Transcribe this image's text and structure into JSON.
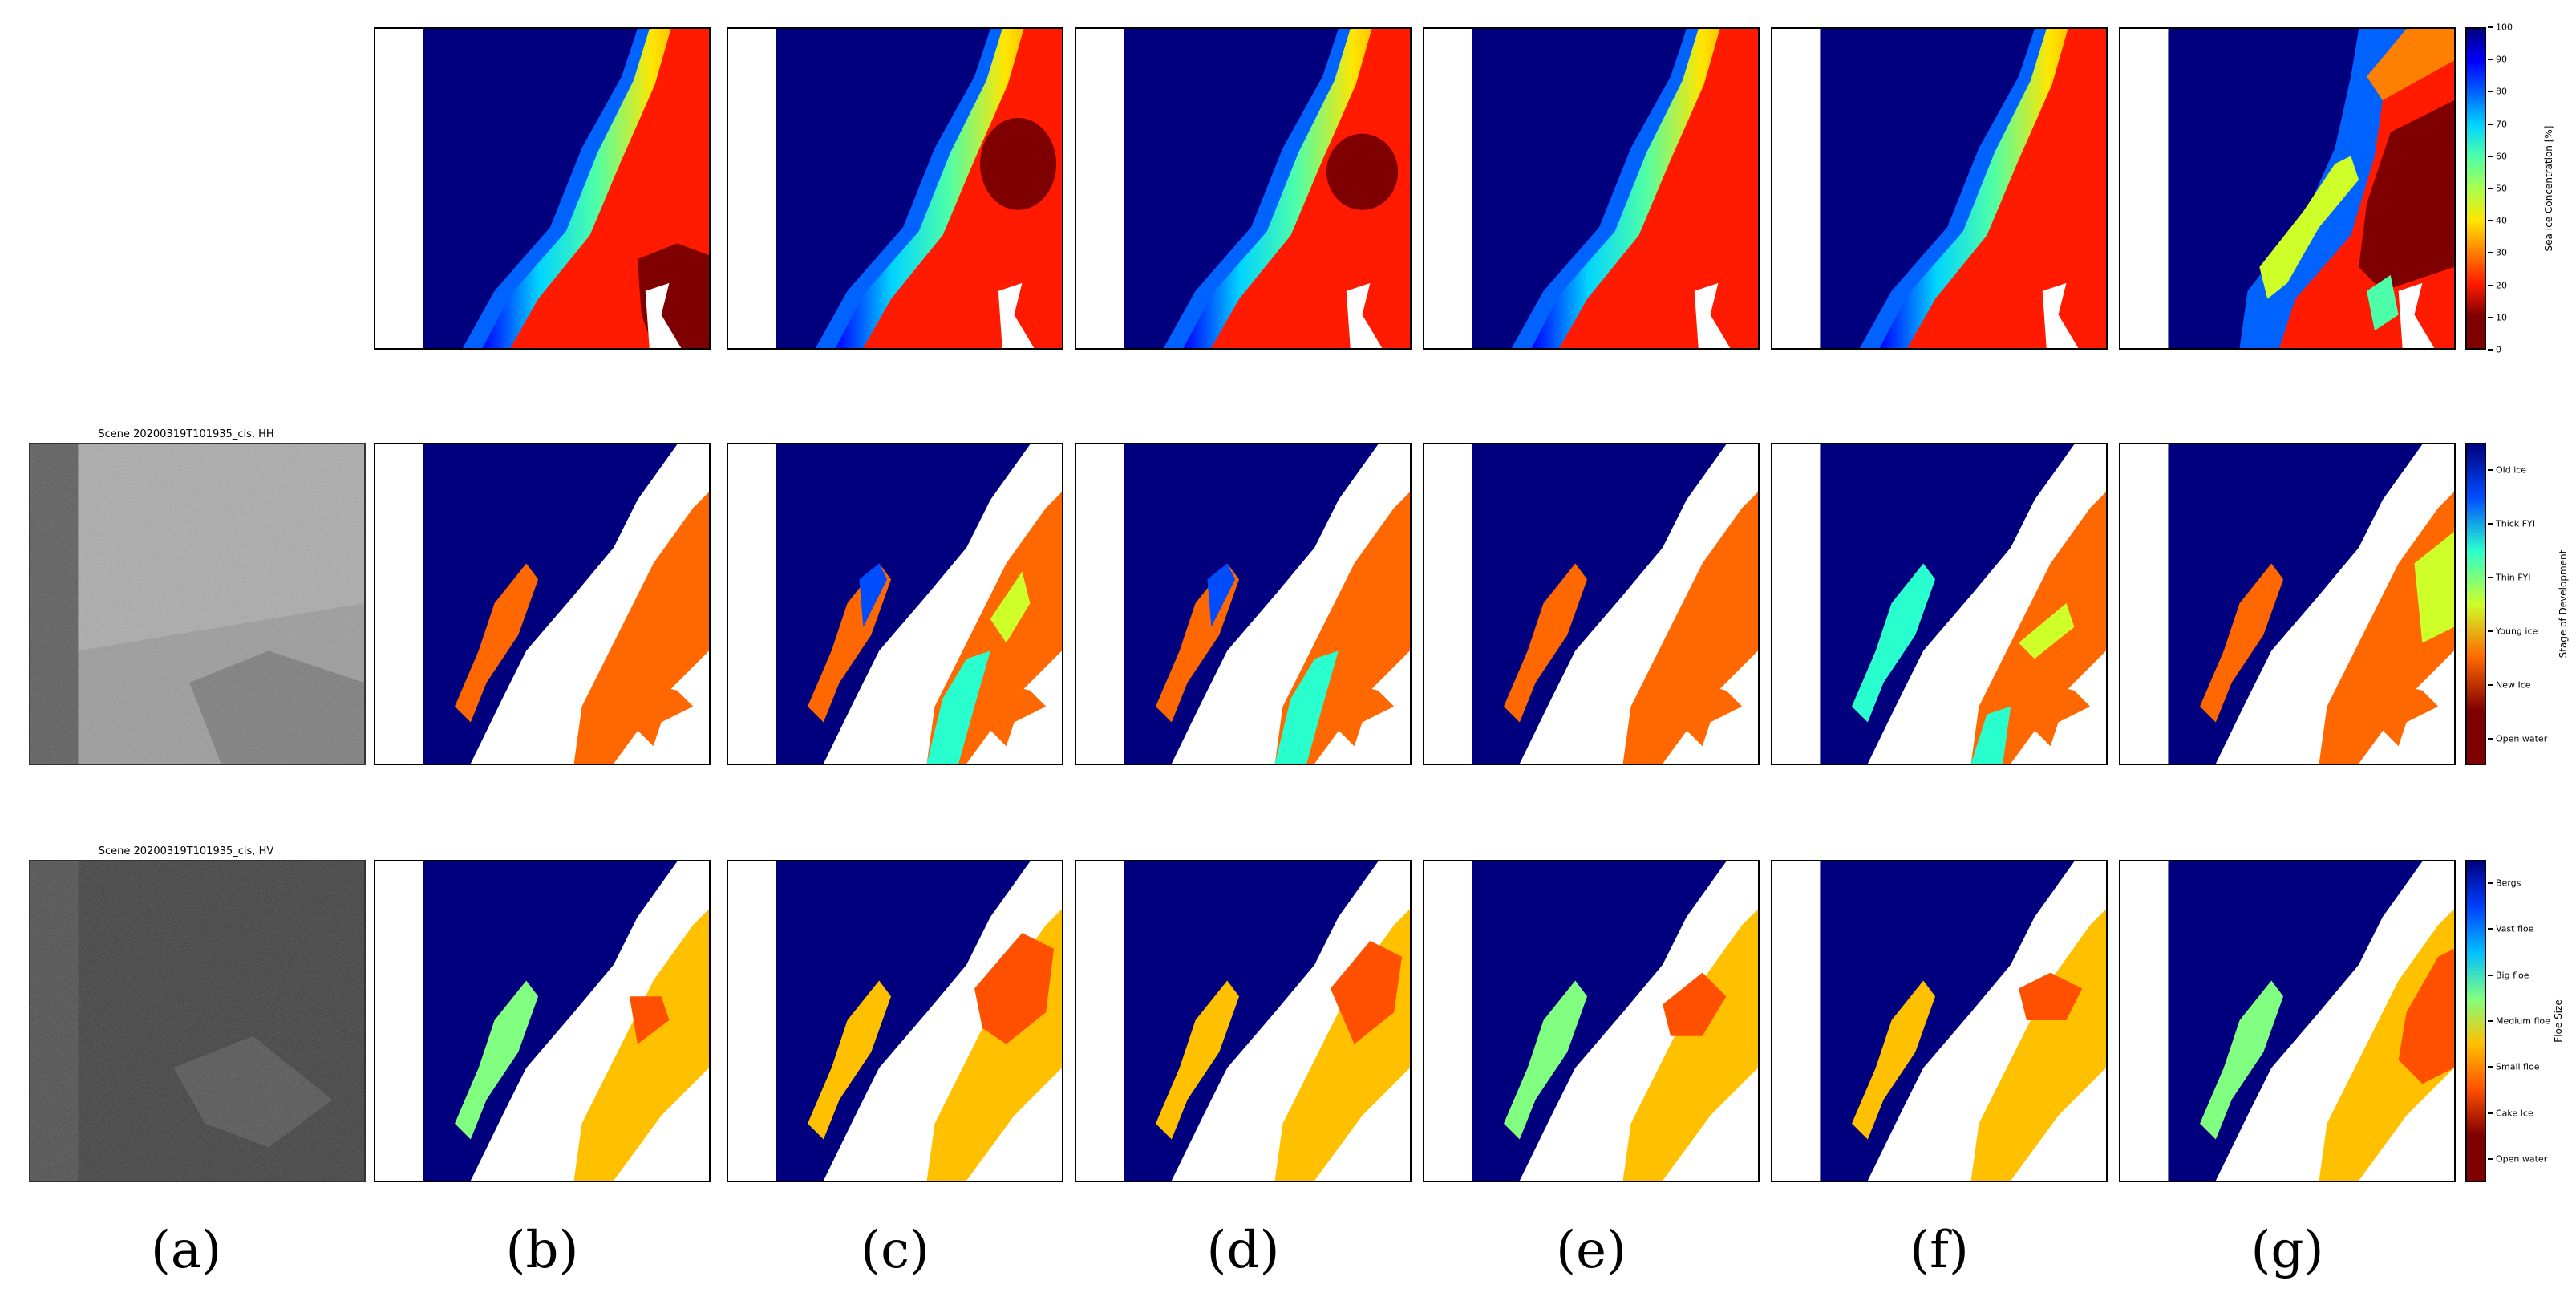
{
  "sar_panels": [
    {
      "title": "Scene 20200319T101935_cis, HH"
    },
    {
      "title": "Scene 20200319T101935_cis, HV"
    }
  ],
  "column_labels": [
    "(a)",
    "(b)",
    "(c)",
    "(d)",
    "(e)",
    "(f)",
    "(g)"
  ],
  "colorbars": {
    "sic": {
      "title": "Sea Ice Concentration [%]",
      "ticks": [
        "0",
        "10",
        "20",
        "30",
        "40",
        "50",
        "60",
        "70",
        "80",
        "90",
        "100"
      ],
      "colors": [
        "#00007f",
        "#0000ff",
        "#0063ff",
        "#00d4ff",
        "#4effa9",
        "#a9ff4e",
        "#ffe600",
        "#ff8000",
        "#ff1a00",
        "#7f0000"
      ]
    },
    "sod": {
      "title": "Stage of Development",
      "ticks": [
        "Open water",
        "New Ice",
        "Young ice",
        "Thin FYI",
        "Thick FYI",
        "Old ice"
      ],
      "colors": [
        "#00007f",
        "#004dff",
        "#29ffce",
        "#ceff29",
        "#ff6800",
        "#7f0000"
      ]
    },
    "floe": {
      "title": "Floe Size",
      "ticks": [
        "Open water",
        "Cake Ice",
        "Small floe",
        "Medium floe",
        "Big floe",
        "Vast floe",
        "Bergs"
      ],
      "colors": [
        "#00007f",
        "#0040ff",
        "#00c0ff",
        "#80ff80",
        "#ffc000",
        "#ff5000",
        "#800000"
      ]
    }
  }
}
